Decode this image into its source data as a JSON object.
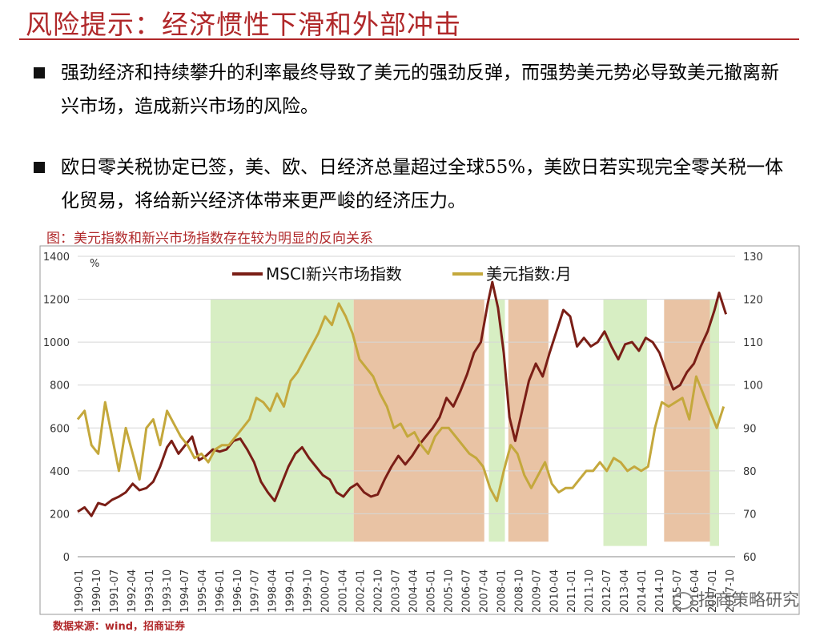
{
  "header": {
    "title": "风险提示：经济惯性下滑和外部冲击"
  },
  "bullets": [
    {
      "text": "强劲经济和持续攀升的利率最终导致了美元的强劲反弹，而强势美元势必导致美元撤离新兴市场，造成新兴市场的风险。"
    },
    {
      "text": "欧日零关税协定已签，美、欧、日经济总量超过全球55%，美欧日若实现完全零关税一体化贸易，将给新兴经济体带来更严峻的经济压力。"
    }
  ],
  "figure": {
    "caption": "图：美元指数和新兴市场指数存在较为明显的反向关系",
    "source": "数据来源：wind，招商证券",
    "watermark": "招商策略研究"
  },
  "chart_data": {
    "type": "line",
    "unit_label": "%",
    "y_left": {
      "min": 0,
      "max": 1400,
      "ticks": [
        0,
        200,
        400,
        600,
        800,
        1000,
        1200,
        1400
      ]
    },
    "y_right": {
      "min": 60,
      "max": 130,
      "ticks": [
        60,
        70,
        80,
        90,
        100,
        110,
        120,
        130
      ]
    },
    "x_tick_labels": [
      "1990-01",
      "1990-10",
      "1991-07",
      "1992-04",
      "1993-01",
      "1993-10",
      "1994-07",
      "1995-04",
      "1996-01",
      "1996-10",
      "1997-07",
      "1998-04",
      "1999-01",
      "1999-10",
      "2000-07",
      "2001-04",
      "2002-01",
      "2002-10",
      "2003-07",
      "2004-04",
      "2005-01",
      "2005-10",
      "2006-07",
      "2007-04",
      "2008-01",
      "2008-10",
      "2009-07",
      "2010-04",
      "2011-01",
      "2011-10",
      "2012-07",
      "2013-04",
      "2014-01",
      "2014-10",
      "2015-07",
      "2016-04",
      "2017-01",
      "2017-10"
    ],
    "x_range": [
      1990.0,
      2018.7
    ],
    "shaded_periods": [
      {
        "start": 1995.8,
        "end": 2002.05,
        "color": "#d7eec3",
        "bottom": 63.5
      },
      {
        "start": 2002.05,
        "end": 2007.75,
        "color": "#e9c3a4",
        "bottom": 63.5
      },
      {
        "start": 2007.95,
        "end": 2008.65,
        "color": "#d7eec3",
        "bottom": 63.5
      },
      {
        "start": 2008.8,
        "end": 2010.55,
        "color": "#e9c3a4",
        "bottom": 63.5
      },
      {
        "start": 2012.95,
        "end": 2014.85,
        "color": "#d7eec3",
        "bottom": 62.5
      },
      {
        "start": 2015.6,
        "end": 2017.6,
        "color": "#e9c3a4",
        "bottom": 63.5
      },
      {
        "start": 2017.6,
        "end": 2018.0,
        "color": "#d7eec3",
        "bottom": 62.5
      }
    ],
    "series": [
      {
        "name": "MSCI新兴市场指数",
        "axis": "left",
        "color": "#7a1e16",
        "x": [
          1990.0,
          1990.3,
          1990.6,
          1990.9,
          1991.2,
          1991.5,
          1991.8,
          1992.1,
          1992.4,
          1992.7,
          1993.0,
          1993.3,
          1993.6,
          1993.9,
          1994.1,
          1994.4,
          1994.7,
          1995.0,
          1995.3,
          1995.6,
          1995.9,
          1996.2,
          1996.5,
          1996.8,
          1997.1,
          1997.4,
          1997.7,
          1998.0,
          1998.3,
          1998.6,
          1998.9,
          1999.2,
          1999.5,
          1999.8,
          2000.1,
          2000.4,
          2000.7,
          2001.0,
          2001.3,
          2001.6,
          2001.9,
          2002.2,
          2002.5,
          2002.8,
          2003.1,
          2003.4,
          2003.7,
          2004.0,
          2004.3,
          2004.6,
          2004.9,
          2005.2,
          2005.5,
          2005.8,
          2006.1,
          2006.4,
          2006.7,
          2007.0,
          2007.3,
          2007.6,
          2007.9,
          2008.1,
          2008.35,
          2008.6,
          2008.85,
          2009.1,
          2009.4,
          2009.7,
          2010.0,
          2010.3,
          2010.6,
          2010.9,
          2011.2,
          2011.5,
          2011.8,
          2012.1,
          2012.4,
          2012.7,
          2013.0,
          2013.3,
          2013.6,
          2013.9,
          2014.2,
          2014.5,
          2014.8,
          2015.1,
          2015.4,
          2015.7,
          2016.0,
          2016.3,
          2016.6,
          2016.9,
          2017.2,
          2017.5,
          2017.8,
          2018.0,
          2018.3
        ],
        "values": [
          210,
          230,
          190,
          250,
          240,
          265,
          280,
          300,
          340,
          310,
          320,
          350,
          420,
          510,
          540,
          480,
          520,
          560,
          450,
          470,
          500,
          490,
          500,
          540,
          550,
          500,
          440,
          350,
          300,
          260,
          340,
          420,
          480,
          510,
          460,
          420,
          380,
          360,
          300,
          280,
          320,
          340,
          300,
          280,
          290,
          360,
          420,
          470,
          430,
          470,
          520,
          560,
          600,
          650,
          740,
          700,
          770,
          850,
          950,
          1000,
          1180,
          1280,
          1160,
          950,
          650,
          540,
          680,
          820,
          900,
          840,
          950,
          1050,
          1150,
          1120,
          980,
          1020,
          980,
          1000,
          1050,
          980,
          920,
          990,
          1000,
          960,
          1020,
          1000,
          950,
          860,
          780,
          800,
          860,
          900,
          980,
          1050,
          1150,
          1230,
          1130
        ]
      },
      {
        "name": "美元指数:月",
        "axis": "right",
        "color": "#c4a83c",
        "x": [
          1990.0,
          1990.3,
          1990.6,
          1990.9,
          1991.2,
          1991.5,
          1991.8,
          1992.1,
          1992.4,
          1992.7,
          1993.0,
          1993.3,
          1993.6,
          1993.9,
          1994.2,
          1994.5,
          1994.8,
          1995.1,
          1995.4,
          1995.7,
          1996.0,
          1996.3,
          1996.6,
          1996.9,
          1997.2,
          1997.5,
          1997.8,
          1998.1,
          1998.4,
          1998.7,
          1999.0,
          1999.3,
          1999.6,
          1999.9,
          2000.2,
          2000.5,
          2000.8,
          2001.1,
          2001.4,
          2001.7,
          2002.0,
          2002.3,
          2002.6,
          2002.9,
          2003.2,
          2003.5,
          2003.8,
          2004.1,
          2004.4,
          2004.7,
          2005.0,
          2005.3,
          2005.6,
          2005.9,
          2006.2,
          2006.5,
          2006.8,
          2007.1,
          2007.4,
          2007.7,
          2008.0,
          2008.3,
          2008.6,
          2008.9,
          2009.2,
          2009.5,
          2009.8,
          2010.1,
          2010.4,
          2010.7,
          2011.0,
          2011.3,
          2011.6,
          2011.9,
          2012.2,
          2012.5,
          2012.8,
          2013.1,
          2013.4,
          2013.7,
          2014.0,
          2014.3,
          2014.6,
          2014.9,
          2015.2,
          2015.5,
          2015.8,
          2016.1,
          2016.4,
          2016.7,
          2017.0,
          2017.3,
          2017.6,
          2017.9,
          2018.2
        ],
        "values": [
          92,
          94,
          86,
          84,
          96,
          88,
          80,
          90,
          84,
          78,
          90,
          92,
          86,
          94,
          91,
          88,
          86,
          83,
          84,
          82,
          85,
          86,
          86,
          88,
          90,
          92,
          97,
          96,
          94,
          98,
          95,
          101,
          103,
          106,
          109,
          112,
          116,
          114,
          119,
          116,
          112,
          106,
          104,
          102,
          98,
          95,
          90,
          91,
          88,
          89,
          86,
          84,
          88,
          90,
          90,
          88,
          86,
          84,
          83,
          81,
          76,
          73,
          80,
          86,
          84,
          79,
          76,
          79,
          82,
          77,
          75,
          76,
          76,
          78,
          80,
          80,
          82,
          80,
          83,
          82,
          80,
          81,
          80,
          81,
          90,
          96,
          95,
          96,
          97,
          92,
          102,
          98,
          94,
          90,
          95
        ]
      }
    ],
    "legend": {
      "position": "top-center"
    }
  }
}
